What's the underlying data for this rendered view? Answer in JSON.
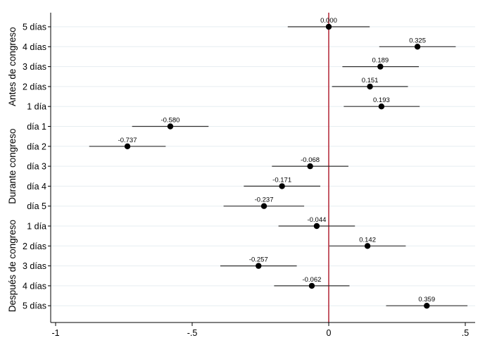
{
  "chart_data": {
    "type": "scatter",
    "subtype": "coefficient-plot",
    "xlim": [
      -1,
      0.5
    ],
    "x_ticks": [
      -1,
      -0.5,
      0,
      0.5
    ],
    "x_tick_labels": [
      "-1",
      "-.5",
      "0",
      ".5"
    ],
    "reference_line": {
      "x": 0,
      "color": "#b22234"
    },
    "grid": "horizontal",
    "colors": {
      "point": "#000000",
      "ci": "#2f2f2f",
      "grid": "#e6edf1",
      "axis": "#000000"
    },
    "groups": [
      {
        "name": "Antes de congreso",
        "rows": [
          0,
          4
        ]
      },
      {
        "name": "Durante congreso",
        "rows": [
          5,
          9
        ]
      },
      {
        "name": "Después de congreso",
        "rows": [
          10,
          14
        ]
      }
    ],
    "rows": [
      {
        "label": "5 días",
        "estimate": 0.0,
        "value_label": "0.000",
        "ci": [
          -0.15,
          0.15
        ]
      },
      {
        "label": "4 días",
        "estimate": 0.325,
        "value_label": "0.325",
        "ci": [
          0.185,
          0.465
        ]
      },
      {
        "label": "3 días",
        "estimate": 0.189,
        "value_label": "0.189",
        "ci": [
          0.05,
          0.33
        ]
      },
      {
        "label": "2 días",
        "estimate": 0.151,
        "value_label": "0.151",
        "ci": [
          0.012,
          0.29
        ]
      },
      {
        "label": "1 día",
        "estimate": 0.193,
        "value_label": "0.193",
        "ci": [
          0.055,
          0.333
        ]
      },
      {
        "label": "día 1",
        "estimate": -0.58,
        "value_label": "-0.580",
        "ci": [
          -0.72,
          -0.44
        ]
      },
      {
        "label": "día 2",
        "estimate": -0.737,
        "value_label": "-0.737",
        "ci": [
          -0.877,
          -0.597
        ]
      },
      {
        "label": "día 3",
        "estimate": -0.068,
        "value_label": "-0.068",
        "ci": [
          -0.208,
          0.072
        ]
      },
      {
        "label": "día 4",
        "estimate": -0.171,
        "value_label": "-0.171",
        "ci": [
          -0.311,
          -0.031
        ]
      },
      {
        "label": "día 5",
        "estimate": -0.237,
        "value_label": "-0.237",
        "ci": [
          -0.385,
          -0.09
        ]
      },
      {
        "label": "1 día",
        "estimate": -0.044,
        "value_label": "-0.044",
        "ci": [
          -0.184,
          0.096
        ]
      },
      {
        "label": "2 días",
        "estimate": 0.142,
        "value_label": "0.142",
        "ci": [
          0.002,
          0.282
        ]
      },
      {
        "label": "3 días",
        "estimate": -0.257,
        "value_label": "-0.257",
        "ci": [
          -0.397,
          -0.117
        ]
      },
      {
        "label": "4 días",
        "estimate": -0.062,
        "value_label": "-0.062",
        "ci": [
          -0.2,
          0.076
        ]
      },
      {
        "label": "5 días",
        "estimate": 0.359,
        "value_label": "0.359",
        "ci": [
          0.21,
          0.508
        ]
      }
    ]
  }
}
